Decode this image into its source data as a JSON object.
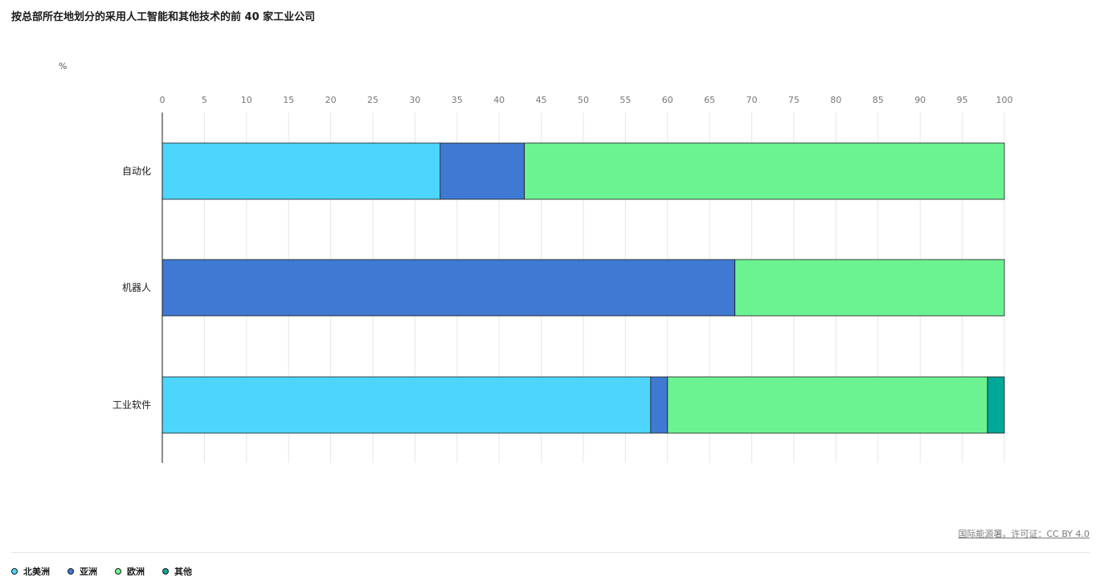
{
  "title": "按总部所在地划分的采用人工智能和其他技术的前 40 家工业公司",
  "unit": "%",
  "source": "国际能源署。许可证：CC BY 4.0",
  "colors": {
    "北美洲": "#4dd5fd",
    "亚洲": "#3f79d3",
    "欧洲": "#6bf392",
    "其他": "#00a89a"
  },
  "legend": [
    {
      "label": "北美洲",
      "color": "#4dd5fd"
    },
    {
      "label": "亚洲",
      "color": "#3f79d3"
    },
    {
      "label": "欧洲",
      "color": "#6bf392"
    },
    {
      "label": "其他",
      "color": "#00a89a"
    }
  ],
  "chart_data": {
    "type": "bar",
    "orientation": "horizontal",
    "stacked": true,
    "title": "按总部所在地划分的采用人工智能和其他技术的前 40 家工业公司",
    "xlabel": "%",
    "xlim": [
      0,
      100
    ],
    "xticks": [
      0,
      5,
      10,
      15,
      20,
      25,
      30,
      35,
      40,
      45,
      50,
      55,
      60,
      65,
      70,
      75,
      80,
      85,
      90,
      95,
      100
    ],
    "categories": [
      "自动化",
      "机器人",
      "工业软件"
    ],
    "series": [
      {
        "name": "北美洲",
        "values": [
          33,
          0,
          58
        ]
      },
      {
        "name": "亚洲",
        "values": [
          10,
          68,
          2
        ]
      },
      {
        "name": "欧洲",
        "values": [
          57,
          32,
          38
        ]
      },
      {
        "name": "其他",
        "values": [
          0,
          0,
          2
        ]
      }
    ],
    "grid": true,
    "legend_position": "bottom-left"
  }
}
